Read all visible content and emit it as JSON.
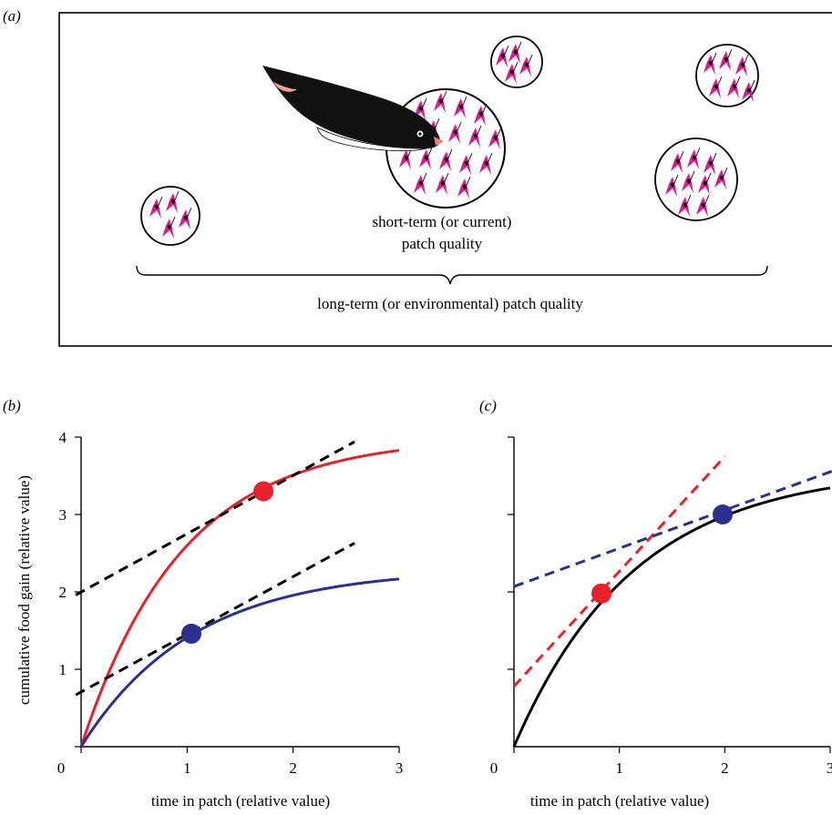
{
  "panel_a": {
    "label": "(a)",
    "short_term_line1": "short-term (or current)",
    "short_term_line2": "patch quality",
    "long_term_label": "long-term (or environmental) patch quality"
  },
  "colors": {
    "prey": "#e0178f",
    "red": "#e8212a",
    "blue": "#2b2f8f",
    "black": "#000000"
  },
  "chart_data": [
    {
      "type": "line",
      "panel_label": "(b)",
      "xlabel": "time in patch (relative value)",
      "ylabel": "cumulative food gain  (relative value)",
      "xlim": [
        0,
        3
      ],
      "ylim": [
        0,
        4
      ],
      "xticks": [
        0,
        1,
        2,
        3
      ],
      "yticks": [
        1,
        2,
        3,
        4
      ],
      "series": [
        {
          "color": "red",
          "style": "solid",
          "fn": "saturating",
          "asymptote": 4.0,
          "rate": 1.05
        },
        {
          "color": "blue",
          "style": "solid",
          "fn": "saturating",
          "asymptote": 2.3,
          "rate": 0.95
        },
        {
          "color": "black",
          "style": "dashed",
          "x": [
            -0.05,
            2.58
          ],
          "y": [
            1.96,
            3.94
          ]
        },
        {
          "color": "black",
          "style": "dashed",
          "x": [
            -0.05,
            2.58
          ],
          "y": [
            0.67,
            2.63
          ]
        }
      ],
      "points": [
        {
          "color": "red",
          "x": 1.72,
          "y": 3.3
        },
        {
          "color": "blue",
          "x": 1.04,
          "y": 1.46
        }
      ]
    },
    {
      "type": "line",
      "panel_label": "(c)",
      "xlabel": "time in patch (relative value)",
      "ylabel": "",
      "xlim": [
        0,
        3
      ],
      "ylim": [
        0,
        4
      ],
      "xticks": [
        0,
        1,
        2,
        3
      ],
      "yticks": [
        1,
        2,
        3,
        4
      ],
      "series": [
        {
          "color": "black",
          "style": "solid",
          "fn": "saturating",
          "asymptote": 3.6,
          "rate": 0.88
        },
        {
          "color": "red",
          "style": "dashed",
          "x": [
            0.0,
            2.0
          ],
          "y": [
            0.78,
            3.75
          ]
        },
        {
          "color": "blue",
          "style": "dashed",
          "x": [
            0.0,
            3.1
          ],
          "y": [
            2.07,
            3.6
          ]
        }
      ],
      "points": [
        {
          "color": "red",
          "x": 0.83,
          "y": 1.98
        },
        {
          "color": "blue",
          "x": 1.98,
          "y": 3.0
        }
      ]
    }
  ]
}
